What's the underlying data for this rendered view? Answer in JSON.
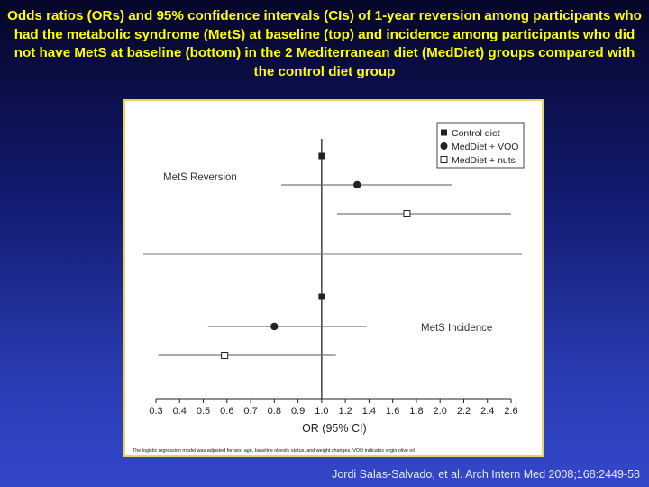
{
  "slide": {
    "title": "Odds ratios (ORs) and 95% confidence intervals (CIs) of  1-year reversion among participants who had the metabolic syndrome (MetS) at baseline (top) and incidence among participants who did not have MetS at baseline (bottom) in the 2 Mediterranean diet (MedDiet) groups compared with the control diet group",
    "citation": "Jordi Salas-Salvado, et al. Arch Intern Med 2008;168:2449-58"
  },
  "colors": {
    "title": "#ffff00",
    "frame_border": "#e9d469",
    "ink": "#222222",
    "ci_line": "#555555"
  },
  "chart_data": {
    "type": "forest",
    "xlabel": "OR (95% CI)",
    "xlim": [
      0.3,
      2.6
    ],
    "x_ticks": [
      0.3,
      0.4,
      0.5,
      0.6,
      0.7,
      0.8,
      0.9,
      1.0,
      1.2,
      1.4,
      1.6,
      1.8,
      2.0,
      2.2,
      2.4,
      2.6
    ],
    "x_tick_labels": [
      "0.3",
      "0.4",
      "0.5",
      "0.6",
      "0.7",
      "0.8",
      "0.9",
      "1.0",
      "1.2",
      "1.4",
      "1.6",
      "1.8",
      "2.0",
      "2.2",
      "2.4",
      "2.6"
    ],
    "reference_line": 1.0,
    "legend": {
      "position": "top-right",
      "entries": [
        {
          "name": "Control diet",
          "marker": "filled-square"
        },
        {
          "name": "MedDiet + VOO",
          "marker": "filled-circle"
        },
        {
          "name": "MedDiet + nuts",
          "marker": "open-square"
        }
      ]
    },
    "panels": [
      {
        "label": "MetS Reversion",
        "rows": [
          {
            "group": "Control diet",
            "or": 1.0,
            "ci": null
          },
          {
            "group": "MedDiet + VOO",
            "or": 1.3,
            "ci": [
              0.83,
              2.1
            ]
          },
          {
            "group": "MedDiet + nuts",
            "or": 1.72,
            "ci": [
              1.13,
              2.6
            ]
          }
        ]
      },
      {
        "label": "MetS Incidence",
        "rows": [
          {
            "group": "Control diet",
            "or": 1.0,
            "ci": null
          },
          {
            "group": "MedDiet + VOO",
            "or": 0.8,
            "ci": [
              0.52,
              1.38
            ]
          },
          {
            "group": "MedDiet + nuts",
            "or": 0.59,
            "ci": [
              0.31,
              1.12
            ]
          }
        ]
      }
    ],
    "footnote": "The logistic regression model was adjusted for sex, age, baseline obesity status, and weight changes. VOO indicates virgin olive oil"
  }
}
